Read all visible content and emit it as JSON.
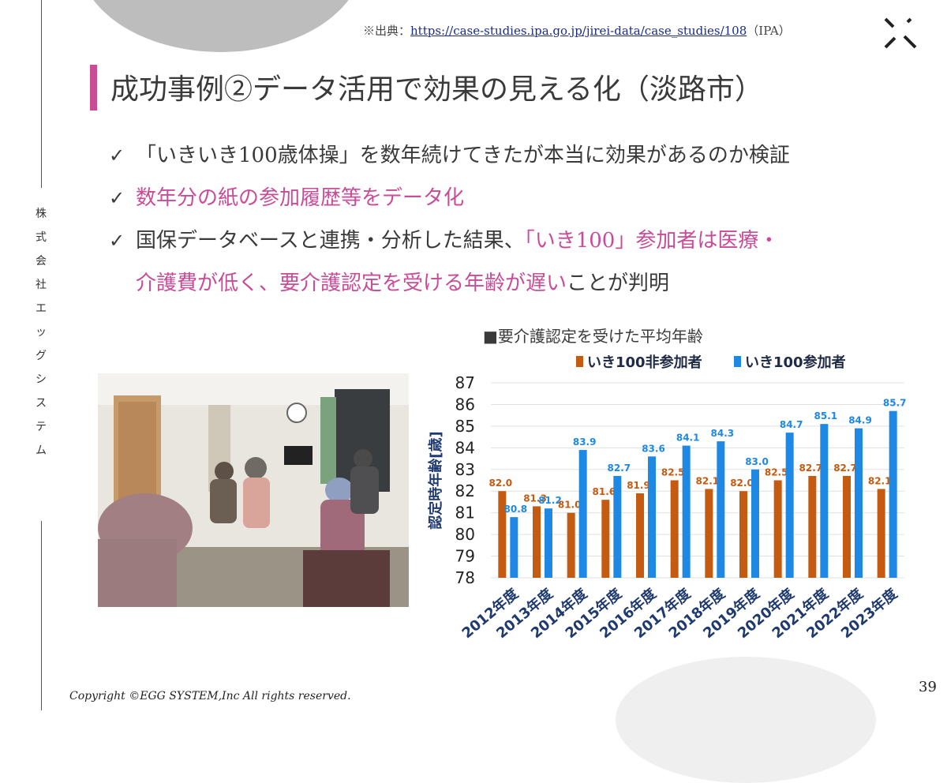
{
  "source": {
    "prefix": "※出典：",
    "link": "https://case-studies.ipa.go.jp/jirei-data/case_studies/108",
    "suffix": "（IPA）"
  },
  "title": "成功事例②データ活用で効果の見える化（淡路市）",
  "company_vertical": "株式会社エッグシステム",
  "bullets": [
    {
      "plain": "「いきいき100歳体操」を数年続けてきたが本当に効果があるのか検証"
    },
    {
      "pink": "数年分の紙の参加履歴等をデータ化"
    },
    {
      "plain": "国保データベースと連携・分析した結果、",
      "pink1": "「いき100」参加者は医療・",
      "pink2": "介護費が低く、要介護認定を受ける年齢が遅い",
      "plain2": "ことが判明"
    }
  ],
  "chart_title": "■要介護認定を受けた平均年齢",
  "chart_data": {
    "type": "bar",
    "title": "■要介護認定を受けた平均年齢",
    "categories": [
      "2012年度",
      "2013年度",
      "2014年度",
      "2015年度",
      "2016年度",
      "2017年度",
      "2018年度",
      "2019年度",
      "2020年度",
      "2021年度",
      "2022年度",
      "2023年度"
    ],
    "series": [
      {
        "name": "いき100非参加者",
        "color": "#c55a11",
        "values": [
          82.0,
          81.3,
          81.0,
          81.6,
          81.9,
          82.5,
          82.1,
          82.0,
          82.5,
          82.7,
          82.7,
          82.1
        ]
      },
      {
        "name": "いき100参加者",
        "color": "#1e88e5",
        "values": [
          80.8,
          81.2,
          83.9,
          82.7,
          83.6,
          84.1,
          84.3,
          83.0,
          84.7,
          85.1,
          84.9,
          85.7
        ]
      }
    ],
    "ylabel": "認定時年齢[歳]",
    "ylim": [
      78,
      87
    ],
    "yticks": [
      78,
      79,
      80,
      81,
      82,
      83,
      84,
      85,
      86,
      87
    ],
    "grid": true,
    "legend": "top"
  },
  "copyright": "Copyright ©EGG SYSTEM,Inc All rights reserved.",
  "page_number": "39"
}
